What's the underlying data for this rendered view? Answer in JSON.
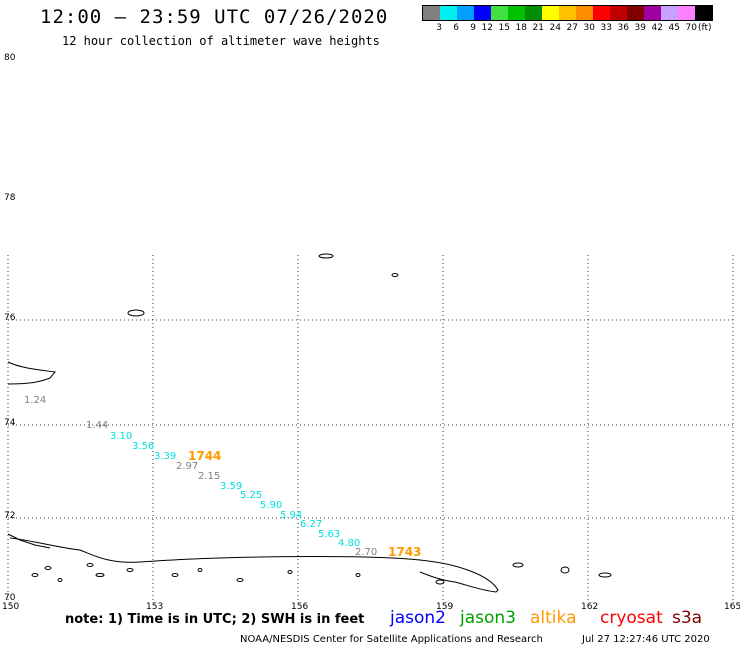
{
  "header": {
    "title": "12:00 – 23:59 UTC 07/26/2020",
    "subtitle": "12 hour collection of altimeter wave heights"
  },
  "legend": {
    "unit": "(ft)",
    "items": [
      {
        "label": "3",
        "color": "#808080"
      },
      {
        "label": "6",
        "color": "#00f0f0"
      },
      {
        "label": "9",
        "color": "#00a0ff"
      },
      {
        "label": "12",
        "color": "#0000ff"
      },
      {
        "label": "15",
        "color": "#40e040"
      },
      {
        "label": "18",
        "color": "#00c000"
      },
      {
        "label": "21",
        "color": "#008c00"
      },
      {
        "label": "24",
        "color": "#ffff00"
      },
      {
        "label": "27",
        "color": "#ffc000"
      },
      {
        "label": "30",
        "color": "#ff8c00"
      },
      {
        "label": "33",
        "color": "#ff0000"
      },
      {
        "label": "36",
        "color": "#c00000"
      },
      {
        "label": "39",
        "color": "#800000"
      },
      {
        "label": "42",
        "color": "#a000a0"
      },
      {
        "label": "45",
        "color": "#c8a0ff"
      },
      {
        "label": "70",
        "color": "#ff80ff"
      },
      {
        "label": "",
        "color": "#000000"
      }
    ]
  },
  "axes": {
    "lat_labels": [
      "80",
      "78",
      "76",
      "74",
      "72",
      "70"
    ],
    "lon_labels": [
      "150",
      "153",
      "156",
      "159",
      "162",
      "165"
    ]
  },
  "observations": [
    {
      "value": "1.24",
      "color": "#808080"
    },
    {
      "value": "1.44",
      "color": "#808080"
    },
    {
      "value": "3.10",
      "color": "#00e0e0"
    },
    {
      "value": "3.56",
      "color": "#00e0e0"
    },
    {
      "value": "3.39",
      "color": "#00e0e0"
    },
    {
      "value": "2.97",
      "color": "#808080"
    },
    {
      "value": "2.15",
      "color": "#808080"
    },
    {
      "value": "3.59",
      "color": "#00e0e0"
    },
    {
      "value": "5.25",
      "color": "#00e0e0"
    },
    {
      "value": "5.90",
      "color": "#00e0e0"
    },
    {
      "value": "5.94",
      "color": "#00e0e0"
    },
    {
      "value": "6.27",
      "color": "#00e0e0"
    },
    {
      "value": "5.63",
      "color": "#00e0e0"
    },
    {
      "value": "4.80",
      "color": "#00e0e0"
    },
    {
      "value": "2.70",
      "color": "#808080"
    }
  ],
  "pass_times": [
    {
      "value": "1744",
      "color": "#ff9900"
    },
    {
      "value": "1743",
      "color": "#ff9900"
    }
  ],
  "footer": {
    "note": "note:  1) Time is in UTC;  2) SWH is in feet",
    "satellites": [
      {
        "name": "jason2",
        "color": "#0000ff"
      },
      {
        "name": "jason3",
        "color": "#00a000"
      },
      {
        "name": "altika",
        "color": "#ff9900"
      },
      {
        "name": "cryosat",
        "color": "#ff0000"
      },
      {
        "name": "s3a",
        "color": "#800000"
      }
    ],
    "credit": "NOAA/NESDIS Center for Satellite Applications and Research",
    "timestamp": "Jul 27 12:27:46 UTC 2020"
  }
}
